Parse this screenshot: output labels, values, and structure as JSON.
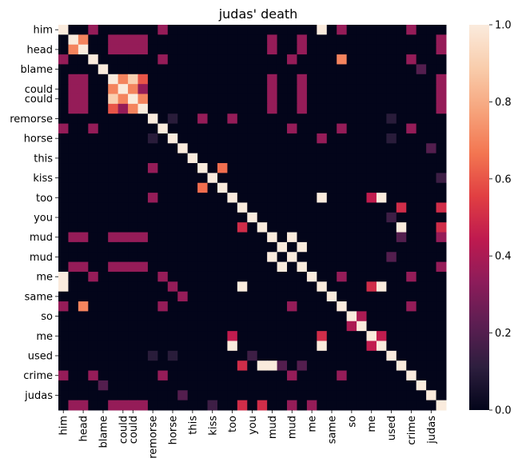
{
  "chart_data": {
    "type": "heatmap",
    "title": "judas' death",
    "xlabel": "",
    "ylabel": "",
    "x_labels": [
      "him",
      "head",
      "blame",
      "could",
      "could",
      "remorse",
      "horse",
      "this",
      "kiss",
      "too",
      "you",
      "mud",
      "mud",
      "me",
      "same",
      "so",
      "me",
      "used",
      "crime",
      "judas"
    ],
    "y_labels": [
      "him",
      "head",
      "blame",
      "could",
      "could",
      "remorse",
      "horse",
      "this",
      "kiss",
      "too",
      "you",
      "mud",
      "mud",
      "me",
      "same",
      "so",
      "me",
      "used",
      "crime",
      "judas"
    ],
    "x_tick_columns": [
      0,
      2,
      4,
      6,
      7,
      9,
      11,
      13,
      15,
      17,
      19,
      21,
      23,
      25,
      27,
      29,
      31,
      33,
      35,
      37
    ],
    "y_tick_rows": [
      0,
      2,
      4,
      6,
      7,
      9,
      11,
      13,
      15,
      17,
      19,
      21,
      23,
      25,
      27,
      29,
      31,
      33,
      35,
      37
    ],
    "n_rows": 39,
    "n_cols": 39,
    "default_value": 0.0,
    "diagonal_value": 1.0,
    "cells": [
      [
        0,
        0,
        1.0
      ],
      [
        0,
        3,
        0.35
      ],
      [
        0,
        10,
        0.35
      ],
      [
        0,
        26,
        1.0
      ],
      [
        0,
        28,
        0.35
      ],
      [
        0,
        35,
        0.35
      ],
      [
        1,
        1,
        1.0
      ],
      [
        1,
        2,
        0.7
      ],
      [
        1,
        5,
        0.35
      ],
      [
        1,
        6,
        0.35
      ],
      [
        1,
        7,
        0.35
      ],
      [
        1,
        8,
        0.35
      ],
      [
        1,
        21,
        0.35
      ],
      [
        1,
        24,
        0.35
      ],
      [
        1,
        38,
        0.35
      ],
      [
        2,
        1,
        0.7
      ],
      [
        2,
        2,
        1.0
      ],
      [
        2,
        5,
        0.35
      ],
      [
        2,
        6,
        0.35
      ],
      [
        2,
        7,
        0.35
      ],
      [
        2,
        8,
        0.35
      ],
      [
        2,
        21,
        0.35
      ],
      [
        2,
        24,
        0.35
      ],
      [
        2,
        38,
        0.35
      ],
      [
        3,
        0,
        0.35
      ],
      [
        3,
        3,
        1.0
      ],
      [
        3,
        10,
        0.35
      ],
      [
        3,
        23,
        0.35
      ],
      [
        3,
        28,
        0.7
      ],
      [
        3,
        35,
        0.35
      ],
      [
        4,
        4,
        1.0
      ],
      [
        4,
        36,
        0.2
      ],
      [
        5,
        1,
        0.35
      ],
      [
        5,
        2,
        0.35
      ],
      [
        5,
        5,
        1.0
      ],
      [
        5,
        6,
        0.7
      ],
      [
        5,
        7,
        0.9
      ],
      [
        5,
        8,
        0.6
      ],
      [
        5,
        21,
        0.35
      ],
      [
        5,
        24,
        0.35
      ],
      [
        5,
        38,
        0.35
      ],
      [
        6,
        1,
        0.35
      ],
      [
        6,
        2,
        0.35
      ],
      [
        6,
        5,
        0.7
      ],
      [
        6,
        6,
        1.0
      ],
      [
        6,
        7,
        0.7
      ],
      [
        6,
        8,
        0.35
      ],
      [
        6,
        21,
        0.35
      ],
      [
        6,
        24,
        0.35
      ],
      [
        6,
        38,
        0.35
      ],
      [
        7,
        1,
        0.35
      ],
      [
        7,
        2,
        0.35
      ],
      [
        7,
        5,
        0.9
      ],
      [
        7,
        6,
        0.7
      ],
      [
        7,
        7,
        1.0
      ],
      [
        7,
        8,
        0.7
      ],
      [
        7,
        21,
        0.35
      ],
      [
        7,
        24,
        0.35
      ],
      [
        7,
        38,
        0.35
      ],
      [
        8,
        1,
        0.35
      ],
      [
        8,
        2,
        0.35
      ],
      [
        8,
        5,
        0.6
      ],
      [
        8,
        6,
        0.35
      ],
      [
        8,
        7,
        0.7
      ],
      [
        8,
        8,
        1.0
      ],
      [
        8,
        21,
        0.35
      ],
      [
        8,
        24,
        0.35
      ],
      [
        8,
        38,
        0.35
      ],
      [
        9,
        9,
        1.0
      ],
      [
        9,
        11,
        0.1
      ],
      [
        9,
        14,
        0.35
      ],
      [
        9,
        17,
        0.35
      ],
      [
        9,
        33,
        0.1
      ],
      [
        10,
        0,
        0.35
      ],
      [
        10,
        3,
        0.35
      ],
      [
        10,
        10,
        1.0
      ],
      [
        10,
        23,
        0.35
      ],
      [
        10,
        28,
        0.35
      ],
      [
        10,
        35,
        0.35
      ],
      [
        11,
        9,
        0.1
      ],
      [
        11,
        11,
        1.0
      ],
      [
        11,
        26,
        0.35
      ],
      [
        11,
        33,
        0.1
      ],
      [
        12,
        12,
        1.0
      ],
      [
        12,
        37,
        0.2
      ],
      [
        13,
        13,
        1.0
      ],
      [
        14,
        9,
        0.35
      ],
      [
        14,
        14,
        1.0
      ],
      [
        14,
        16,
        0.65
      ],
      [
        15,
        15,
        1.0
      ],
      [
        15,
        38,
        0.15
      ],
      [
        16,
        14,
        0.65
      ],
      [
        16,
        16,
        1.0
      ],
      [
        17,
        9,
        0.35
      ],
      [
        17,
        17,
        1.0
      ],
      [
        17,
        26,
        1.0
      ],
      [
        17,
        31,
        0.45
      ],
      [
        17,
        32,
        1.0
      ],
      [
        18,
        18,
        1.0
      ],
      [
        18,
        34,
        0.5
      ],
      [
        18,
        38,
        0.5
      ],
      [
        19,
        19,
        1.0
      ],
      [
        19,
        33,
        0.15
      ],
      [
        20,
        18,
        0.5
      ],
      [
        20,
        20,
        1.0
      ],
      [
        20,
        34,
        1.0
      ],
      [
        20,
        38,
        0.5
      ],
      [
        21,
        1,
        0.35
      ],
      [
        21,
        2,
        0.35
      ],
      [
        21,
        5,
        0.35
      ],
      [
        21,
        6,
        0.35
      ],
      [
        21,
        7,
        0.35
      ],
      [
        21,
        8,
        0.35
      ],
      [
        21,
        21,
        1.0
      ],
      [
        21,
        23,
        1.0
      ],
      [
        21,
        34,
        0.2
      ],
      [
        21,
        38,
        0.35
      ],
      [
        22,
        22,
        1.0
      ],
      [
        22,
        24,
        1.0
      ],
      [
        23,
        21,
        1.0
      ],
      [
        23,
        23,
        1.0
      ],
      [
        23,
        33,
        0.2
      ],
      [
        24,
        1,
        0.35
      ],
      [
        24,
        2,
        0.35
      ],
      [
        24,
        5,
        0.35
      ],
      [
        24,
        6,
        0.35
      ],
      [
        24,
        7,
        0.35
      ],
      [
        24,
        8,
        0.35
      ],
      [
        24,
        22,
        1.0
      ],
      [
        24,
        24,
        1.0
      ],
      [
        24,
        38,
        0.35
      ],
      [
        25,
        0,
        1.0
      ],
      [
        25,
        3,
        0.35
      ],
      [
        25,
        10,
        0.35
      ],
      [
        25,
        25,
        1.0
      ],
      [
        25,
        28,
        0.35
      ],
      [
        25,
        35,
        0.35
      ],
      [
        26,
        0,
        1.0
      ],
      [
        26,
        11,
        0.35
      ],
      [
        26,
        18,
        1.0
      ],
      [
        26,
        26,
        1.0
      ],
      [
        26,
        31,
        0.5
      ],
      [
        26,
        32,
        1.0
      ],
      [
        27,
        12,
        0.35
      ],
      [
        27,
        27,
        1.0
      ],
      [
        28,
        0,
        0.35
      ],
      [
        28,
        2,
        0.7
      ],
      [
        28,
        10,
        0.35
      ],
      [
        28,
        23,
        0.35
      ],
      [
        28,
        28,
        1.0
      ],
      [
        28,
        35,
        0.35
      ],
      [
        29,
        29,
        1.0
      ],
      [
        29,
        30,
        0.4
      ],
      [
        30,
        29,
        0.4
      ],
      [
        30,
        30,
        1.0
      ],
      [
        31,
        17,
        0.45
      ],
      [
        31,
        26,
        0.5
      ],
      [
        31,
        31,
        1.0
      ],
      [
        31,
        32,
        0.45
      ],
      [
        32,
        17,
        1.0
      ],
      [
        32,
        26,
        1.0
      ],
      [
        32,
        31,
        0.45
      ],
      [
        32,
        32,
        1.0
      ],
      [
        33,
        9,
        0.1
      ],
      [
        33,
        11,
        0.1
      ],
      [
        33,
        19,
        0.15
      ],
      [
        33,
        33,
        1.0
      ],
      [
        34,
        18,
        0.5
      ],
      [
        34,
        20,
        1.0
      ],
      [
        34,
        21,
        1.0
      ],
      [
        34,
        22,
        0.2
      ],
      [
        34,
        24,
        0.2
      ],
      [
        34,
        34,
        1.0
      ],
      [
        35,
        0,
        0.35
      ],
      [
        35,
        3,
        0.35
      ],
      [
        35,
        10,
        0.35
      ],
      [
        35,
        23,
        0.35
      ],
      [
        35,
        28,
        0.35
      ],
      [
        35,
        35,
        1.0
      ],
      [
        36,
        4,
        0.2
      ],
      [
        36,
        36,
        1.0
      ],
      [
        37,
        12,
        0.2
      ],
      [
        37,
        37,
        1.0
      ],
      [
        38,
        1,
        0.35
      ],
      [
        38,
        2,
        0.35
      ],
      [
        38,
        5,
        0.35
      ],
      [
        38,
        6,
        0.35
      ],
      [
        38,
        7,
        0.35
      ],
      [
        38,
        8,
        0.35
      ],
      [
        38,
        15,
        0.15
      ],
      [
        38,
        18,
        0.5
      ],
      [
        38,
        20,
        0.5
      ],
      [
        38,
        23,
        0.35
      ],
      [
        38,
        25,
        0.35
      ],
      [
        38,
        38,
        1.0
      ]
    ],
    "colorbar": {
      "range": [
        0.0,
        1.0
      ],
      "tick_values": [
        0.0,
        0.2,
        0.4,
        0.6,
        0.8,
        1.0
      ],
      "tick_labels": [
        "0.0",
        "0.2",
        "0.4",
        "0.6",
        "0.8",
        "1.0"
      ],
      "colormap_stops": [
        "#03051a",
        "#2d1e3e",
        "#5c1e52",
        "#8d1c5a",
        "#bf1a4f",
        "#e13f42",
        "#f37651",
        "#f6a47c",
        "#f9cdac",
        "#faebdd"
      ]
    },
    "grid": false,
    "legend": "colorbar-right"
  }
}
